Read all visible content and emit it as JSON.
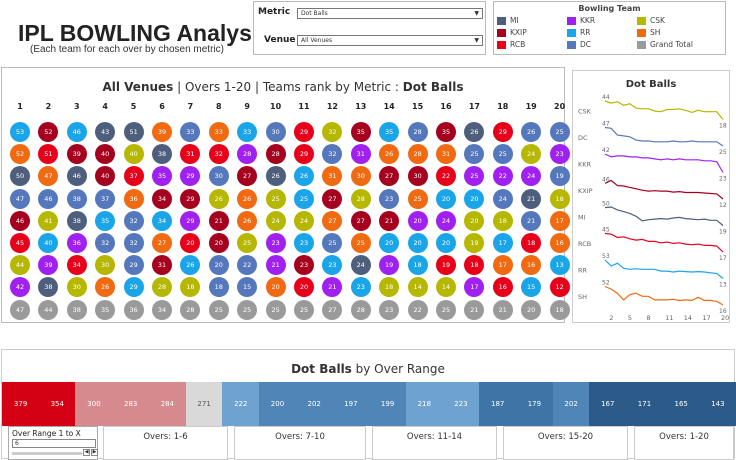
{
  "header": {
    "title": "IPL BOWLING Analysis",
    "subtitle": "(Each team for each over by chosen metric)"
  },
  "controls": {
    "metric_label": "Metric",
    "metric_value": "Dot Balls",
    "venue_label": "Venue",
    "venue_value": "All Venues"
  },
  "legend": {
    "title": "Bowling Team",
    "items": [
      {
        "name": "MI",
        "color": "#4e5f7d"
      },
      {
        "name": "KKR",
        "color": "#a020f0"
      },
      {
        "name": "CSK",
        "color": "#b5b700"
      },
      {
        "name": "KXIP",
        "color": "#a6001f"
      },
      {
        "name": "RR",
        "color": "#1aa5e8"
      },
      {
        "name": "SH",
        "color": "#f06a12"
      },
      {
        "name": "RCB",
        "color": "#e6001a"
      },
      {
        "name": "DC",
        "color": "#5577bb"
      },
      {
        "name": "Grand Total",
        "color": "#9a9a9a"
      }
    ]
  },
  "grid": {
    "title_venue": "All Venues",
    "title_overs": " | Overs 1-20 |  Teams rank by Metric : ",
    "title_metric": "Dot Balls",
    "overs": [
      "1",
      "2",
      "3",
      "4",
      "5",
      "6",
      "7",
      "8",
      "9",
      "10",
      "11",
      "12",
      "13",
      "14",
      "15",
      "16",
      "17",
      "18",
      "19",
      "20"
    ],
    "team_colors": {
      "MI": "#4e5f7d",
      "KKR": "#a020f0",
      "CSK": "#b5b700",
      "KXIP": "#a6001f",
      "RR": "#1aa5e8",
      "SH": "#f06a12",
      "RCB": "#e6001a",
      "DC": "#5577bb",
      "GT": "#9a9a9a"
    },
    "columns": [
      [
        [
          "RR",
          53
        ],
        [
          "SH",
          52
        ],
        [
          "MI",
          50
        ],
        [
          "DC",
          47
        ],
        [
          "KXIP",
          46
        ],
        [
          "RCB",
          45
        ],
        [
          "CSK",
          44
        ],
        [
          "KKR",
          42
        ],
        [
          "GT",
          47
        ]
      ],
      [
        [
          "KXIP",
          52
        ],
        [
          "RCB",
          51
        ],
        [
          "SH",
          47
        ],
        [
          "DC",
          46
        ],
        [
          "CSK",
          41
        ],
        [
          "RR",
          40
        ],
        [
          "KKR",
          39
        ],
        [
          "MI",
          38
        ],
        [
          "GT",
          44
        ]
      ],
      [
        [
          "RR",
          46
        ],
        [
          "KXIP",
          39
        ],
        [
          "MI",
          46
        ],
        [
          "DC",
          38
        ],
        [
          "MI",
          38
        ],
        [
          "KKR",
          36
        ],
        [
          "RCB",
          34
        ],
        [
          "CSK",
          30
        ],
        [
          "GT",
          38
        ]
      ],
      [
        [
          "MI",
          43
        ],
        [
          "KXIP",
          40
        ],
        [
          "KXIP",
          40
        ],
        [
          "DC",
          37
        ],
        [
          "RR",
          35
        ],
        [
          "DC",
          32
        ],
        [
          "CSK",
          30
        ],
        [
          "SH",
          26
        ],
        [
          "GT",
          35
        ]
      ],
      [
        [
          "MI",
          51
        ],
        [
          "CSK",
          40
        ],
        [
          "RCB",
          37
        ],
        [
          "SH",
          36
        ],
        [
          "DC",
          32
        ],
        [
          "DC",
          32
        ],
        [
          "DC",
          29
        ],
        [
          "RR",
          29
        ],
        [
          "GT",
          36
        ]
      ],
      [
        [
          "SH",
          39
        ],
        [
          "MI",
          38
        ],
        [
          "KKR",
          35
        ],
        [
          "KXIP",
          34
        ],
        [
          "RR",
          34
        ],
        [
          "SH",
          27
        ],
        [
          "KXIP",
          31
        ],
        [
          "CSK",
          28
        ],
        [
          "GT",
          34
        ]
      ],
      [
        [
          "DC",
          33
        ],
        [
          "RCB",
          31
        ],
        [
          "KKR",
          29
        ],
        [
          "KXIP",
          29
        ],
        [
          "KKR",
          29
        ],
        [
          "RCB",
          20
        ],
        [
          "RR",
          26
        ],
        [
          "CSK",
          18
        ],
        [
          "GT",
          28
        ]
      ],
      [
        [
          "SH",
          33
        ],
        [
          "RCB",
          32
        ],
        [
          "DC",
          30
        ],
        [
          "CSK",
          26
        ],
        [
          "KXIP",
          21
        ],
        [
          "KXIP",
          20
        ],
        [
          "DC",
          20
        ],
        [
          "DC",
          18
        ],
        [
          "GT",
          25
        ]
      ],
      [
        [
          "RR",
          33
        ],
        [
          "KKR",
          28
        ],
        [
          "KXIP",
          27
        ],
        [
          "SH",
          26
        ],
        [
          "SH",
          26
        ],
        [
          "CSK",
          25
        ],
        [
          "DC",
          22
        ],
        [
          "DC",
          15
        ],
        [
          "GT",
          25
        ]
      ],
      [
        [
          "DC",
          30
        ],
        [
          "KXIP",
          28
        ],
        [
          "MI",
          26
        ],
        [
          "CSK",
          25
        ],
        [
          "CSK",
          24
        ],
        [
          "KKR",
          23
        ],
        [
          "KKR",
          21
        ],
        [
          "SH",
          20
        ],
        [
          "GT",
          25
        ]
      ],
      [
        [
          "RCB",
          29
        ],
        [
          "RCB",
          29
        ],
        [
          "RR",
          26
        ],
        [
          "RR",
          25
        ],
        [
          "CSK",
          24
        ],
        [
          "RR",
          23
        ],
        [
          "KXIP",
          23
        ],
        [
          "RCB",
          20
        ],
        [
          "GT",
          25
        ]
      ],
      [
        [
          "CSK",
          32
        ],
        [
          "DC",
          32
        ],
        [
          "SH",
          31
        ],
        [
          "KXIP",
          27
        ],
        [
          "SH",
          27
        ],
        [
          "DC",
          25
        ],
        [
          "RR",
          23
        ],
        [
          "KKR",
          21
        ],
        [
          "GT",
          27
        ]
      ],
      [
        [
          "KXIP",
          35
        ],
        [
          "KKR",
          31
        ],
        [
          "SH",
          30
        ],
        [
          "CSK",
          28
        ],
        [
          "KXIP",
          27
        ],
        [
          "SH",
          25
        ],
        [
          "MI",
          24
        ],
        [
          "RR",
          23
        ],
        [
          "GT",
          28
        ]
      ],
      [
        [
          "RR",
          35
        ],
        [
          "SH",
          26
        ],
        [
          "KXIP",
          27
        ],
        [
          "DC",
          23
        ],
        [
          "KXIP",
          21
        ],
        [
          "RR",
          20
        ],
        [
          "KKR",
          19
        ],
        [
          "CSK",
          18
        ],
        [
          "GT",
          23
        ]
      ],
      [
        [
          "DC",
          28
        ],
        [
          "SH",
          28
        ],
        [
          "KXIP",
          30
        ],
        [
          "SH",
          25
        ],
        [
          "KKR",
          20
        ],
        [
          "RR",
          20
        ],
        [
          "RR",
          18
        ],
        [
          "CSK",
          14
        ],
        [
          "GT",
          22
        ]
      ],
      [
        [
          "KXIP",
          35
        ],
        [
          "SH",
          31
        ],
        [
          "RCB",
          22
        ],
        [
          "RR",
          20
        ],
        [
          "KKR",
          24
        ],
        [
          "RR",
          20
        ],
        [
          "RCB",
          19
        ],
        [
          "CSK",
          14
        ],
        [
          "GT",
          25
        ]
      ],
      [
        [
          "MI",
          26
        ],
        [
          "DC",
          25
        ],
        [
          "KKR",
          25
        ],
        [
          "RR",
          20
        ],
        [
          "CSK",
          20
        ],
        [
          "CSK",
          19
        ],
        [
          "RCB",
          18
        ],
        [
          "KKR",
          17
        ],
        [
          "GT",
          21
        ]
      ],
      [
        [
          "RCB",
          29
        ],
        [
          "DC",
          25
        ],
        [
          "KKR",
          22
        ],
        [
          "DC",
          24
        ],
        [
          "CSK",
          18
        ],
        [
          "RR",
          17
        ],
        [
          "SH",
          17
        ],
        [
          "RCB",
          16
        ],
        [
          "GT",
          21
        ]
      ],
      [
        [
          "DC",
          26
        ],
        [
          "CSK",
          24
        ],
        [
          "KKR",
          24
        ],
        [
          "MI",
          21
        ],
        [
          "DC",
          21
        ],
        [
          "RCB",
          18
        ],
        [
          "SH",
          16
        ],
        [
          "RR",
          15
        ],
        [
          "GT",
          20
        ]
      ],
      [
        [
          "DC",
          25
        ],
        [
          "KKR",
          23
        ],
        [
          "DC",
          19
        ],
        [
          "CSK",
          18
        ],
        [
          "SH",
          17
        ],
        [
          "SH",
          16
        ],
        [
          "RR",
          13
        ],
        [
          "RCB",
          12
        ],
        [
          "GT",
          18
        ]
      ]
    ]
  },
  "line_chart": {
    "title": "Dot Balls",
    "x_ticks": [
      "2",
      "5",
      "8",
      "11",
      "14",
      "17",
      "20"
    ],
    "teams": [
      {
        "name": "CSK",
        "color": "#b5b700",
        "start_label": "44",
        "end_label": "18",
        "values": [
          44,
          41,
          43,
          38,
          40,
          34,
          33,
          33,
          30,
          29,
          32,
          32,
          33,
          31,
          28,
          31,
          29,
          29,
          29,
          18
        ]
      },
      {
        "name": "DC",
        "color": "#5577bb",
        "start_label": "47",
        "end_label": "25",
        "values": [
          47,
          46,
          38,
          37,
          36,
          32,
          31,
          31,
          30,
          30,
          30,
          31,
          30,
          30,
          31,
          30,
          30,
          30,
          30,
          25
        ]
      },
      {
        "name": "KKR",
        "color": "#a020f0",
        "start_label": "42",
        "end_label": "23",
        "values": [
          42,
          39,
          40,
          40,
          39,
          39,
          38,
          38,
          37,
          36,
          37,
          36,
          37,
          36,
          36,
          36,
          35,
          35,
          34,
          23
        ]
      },
      {
        "name": "KXIP",
        "color": "#a6001f",
        "start_label": "46",
        "end_label": "12",
        "values": [
          46,
          52,
          41,
          40,
          37,
          34,
          31,
          29,
          30,
          29,
          29,
          27,
          28,
          26,
          26,
          26,
          25,
          24,
          23,
          12
        ]
      },
      {
        "name": "MI",
        "color": "#4e5f7d",
        "start_label": "50",
        "end_label": "19",
        "values": [
          50,
          51,
          46,
          43,
          40,
          35,
          27,
          29,
          30,
          31,
          30,
          32,
          33,
          31,
          30,
          29,
          30,
          28,
          28,
          19
        ]
      },
      {
        "name": "RCB",
        "color": "#e6001a",
        "start_label": "45",
        "end_label": "17",
        "values": [
          45,
          44,
          39,
          40,
          37,
          35,
          36,
          33,
          33,
          31,
          32,
          30,
          31,
          29,
          28,
          29,
          27,
          27,
          26,
          17
        ]
      },
      {
        "name": "RR",
        "color": "#1aa5e8",
        "start_label": "53",
        "end_label": "13",
        "values": [
          53,
          40,
          46,
          35,
          33,
          34,
          33,
          33,
          33,
          29,
          29,
          27,
          29,
          28,
          27,
          28,
          27,
          25,
          24,
          13
        ]
      },
      {
        "name": "SH",
        "color": "#f06a12",
        "start_label": "52",
        "end_label": "16",
        "values": [
          52,
          47,
          39,
          26,
          36,
          39,
          33,
          33,
          26,
          26,
          26,
          27,
          25,
          26,
          25,
          31,
          25,
          25,
          23,
          16
        ]
      }
    ]
  },
  "range_chart": {
    "title_metric": "Dot Balls",
    "title_suffix": " by Over Range",
    "cells": [
      {
        "value": "379",
        "color": "#d40013"
      },
      {
        "value": "354",
        "color": "#d40013"
      },
      {
        "value": "300",
        "color": "#d68a8e"
      },
      {
        "value": "283",
        "color": "#d68a8e"
      },
      {
        "value": "284",
        "color": "#d68a8e"
      },
      {
        "value": "271",
        "color": "#d9d9d9"
      },
      {
        "value": "222",
        "color": "#6fa3cf"
      },
      {
        "value": "200",
        "color": "#4f86b7"
      },
      {
        "value": "202",
        "color": "#4f86b7"
      },
      {
        "value": "197",
        "color": "#4f86b7"
      },
      {
        "value": "199",
        "color": "#4f86b7"
      },
      {
        "value": "218",
        "color": "#6fa3cf"
      },
      {
        "value": "223",
        "color": "#6fa3cf"
      },
      {
        "value": "187",
        "color": "#3f75a6"
      },
      {
        "value": "179",
        "color": "#3f75a6"
      },
      {
        "value": "202",
        "color": "#4f86b7"
      },
      {
        "value": "167",
        "color": "#2c5b8a"
      },
      {
        "value": "171",
        "color": "#2c5b8a"
      },
      {
        "value": "165",
        "color": "#2c5b8a"
      },
      {
        "value": "143",
        "color": "#2c5b8a"
      }
    ],
    "over_range_label": "Over Range 1 to  X",
    "over_range_value": "6",
    "overs_boxes": [
      "Overs: 1-6",
      "Overs: 7-10",
      "Overs: 11-14",
      "Overs: 15-20",
      "Overs: 1-20"
    ]
  }
}
